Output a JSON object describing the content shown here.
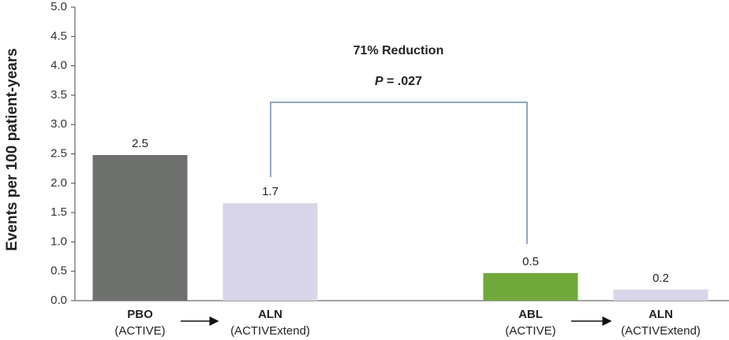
{
  "chart_data": {
    "type": "bar",
    "y_label": "Events per 100 patient-years",
    "categories": [
      "PBO",
      "ALN",
      null,
      "ABL",
      "ALN"
    ],
    "category_sublabels": [
      "(ACTIVE)",
      "(ACTIVExtend)",
      null,
      "(ACTIVE)",
      "(ACTIVExtend)"
    ],
    "values": [
      2.48,
      1.66,
      null,
      0.47,
      0.19
    ],
    "value_labels": [
      "2.5",
      "1.7",
      null,
      "0.5",
      "0.2"
    ],
    "colors": [
      "#6e706d",
      "#dad6e9",
      null,
      "#71a83b",
      "#dad6e9"
    ],
    "ylim": [
      0,
      5
    ],
    "yticks": [
      {
        "value": 0,
        "label": "0.0"
      },
      {
        "value": 0.5,
        "label": "0.5"
      },
      {
        "value": 1,
        "label": "1.0"
      },
      {
        "value": 1.5,
        "label": "1.5"
      },
      {
        "value": 2,
        "label": "2.0"
      },
      {
        "value": 2.5,
        "label": "2.5"
      },
      {
        "value": 3,
        "label": "3.0"
      },
      {
        "value": 3.5,
        "label": "3.5"
      },
      {
        "value": 4,
        "label": "4.0"
      },
      {
        "value": 4.5,
        "label": "4.5"
      },
      {
        "value": 5,
        "label": "5.0"
      }
    ],
    "annotations": {
      "reduction": "71% Reduction",
      "p_symbol": "P",
      "p_text": " = .027"
    }
  }
}
